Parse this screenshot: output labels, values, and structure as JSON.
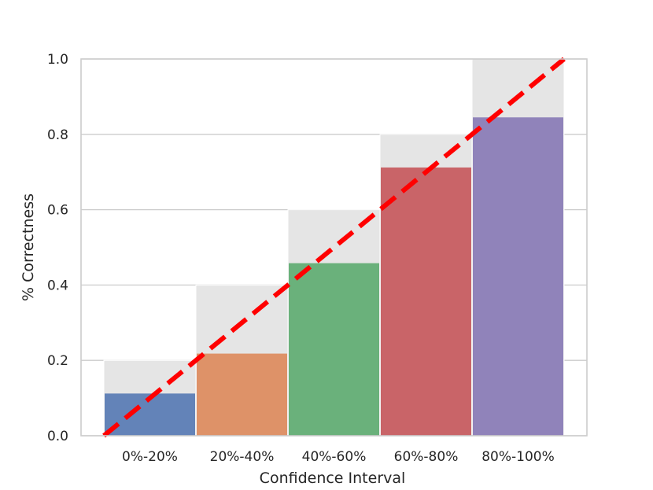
{
  "chart_data": {
    "type": "bar",
    "title": "",
    "xlabel": "Confidence Interval",
    "ylabel": "% Correctness",
    "categories": [
      "0%-20%",
      "20%-40%",
      "40%-60%",
      "60%-80%",
      "80%-100%"
    ],
    "series": [
      {
        "values": [
          0.112,
          0.218,
          0.458,
          0.712,
          0.845
        ]
      }
    ],
    "reference_bars": [
      0.2,
      0.4,
      0.6,
      0.8,
      1.0
    ],
    "diagonal_line": {
      "from": [
        0,
        0
      ],
      "to": [
        1.0,
        1.0
      ],
      "style": "dashed",
      "color": "#ff0000"
    },
    "ylim": [
      0,
      1.0
    ],
    "yticks": [
      "0.0",
      "0.2",
      "0.4",
      "0.6",
      "0.8",
      "1.0"
    ],
    "grid": true,
    "colors": [
      "#4c72b0",
      "#dd8452",
      "#55a868",
      "#c44e52",
      "#8172b3"
    ],
    "reference_color": "#e5e5e5",
    "bar_alpha": 0.85
  }
}
